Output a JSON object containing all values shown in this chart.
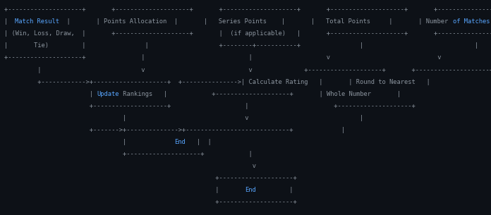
{
  "bg_color": "#0d1117",
  "text_color": "#8b949e",
  "highlight_color": "#58a6ff",
  "font_size": 6.3,
  "lines": [
    "+--------------------+       +--------------------+       +--------------------+       +--------------------+       +--------------------+",
    "|  ##Match Result##  |       | Points Allocation  |       |   Series Points    |       |   Total Points     |       | Number ##of Matches##|",
    "| (Win, Loss, Draw,  |       +--------------------+       |  (if applicable)   |       +--------------------+       +--------------------+",
    "|       Tie)         |                |                   +--------+-----------+                |                              |",
    "+--------------------+               |                            |                    v                             v",
    "         |                           v                            v              +--------------------+       +--------------------+",
    "         +------------>+--------------------+  +--------------->| Calculate Rating   |       | Round to Nearest   |",
    "                       | ##Update## Rankings |            +--------------------+       | Whole Number       |",
    "                       +--------------------+                    |                       +--------------------+",
    "                                |                                v                              |",
    "                       +------->+-------------->+---------------+--+             |",
    "                                |             ##End##   |  |",
    "                                +--------------------+            |",
    "                                                                   v",
    "                                                         +--------------------+",
    "                                                         |       ##End##       |",
    "                                                         +--------------------+"
  ],
  "highlights": [
    {
      "line": 1,
      "word": "Match Result",
      "color": "#58a6ff"
    },
    {
      "line": 1,
      "word": "of Matches",
      "color": "#58a6ff"
    },
    {
      "line": 7,
      "word": "Update",
      "color": "#58a6ff"
    },
    {
      "line": 11,
      "word": "End",
      "color": "#58a6ff"
    },
    {
      "line": 15,
      "word": "End",
      "color": "#58a6ff"
    }
  ]
}
